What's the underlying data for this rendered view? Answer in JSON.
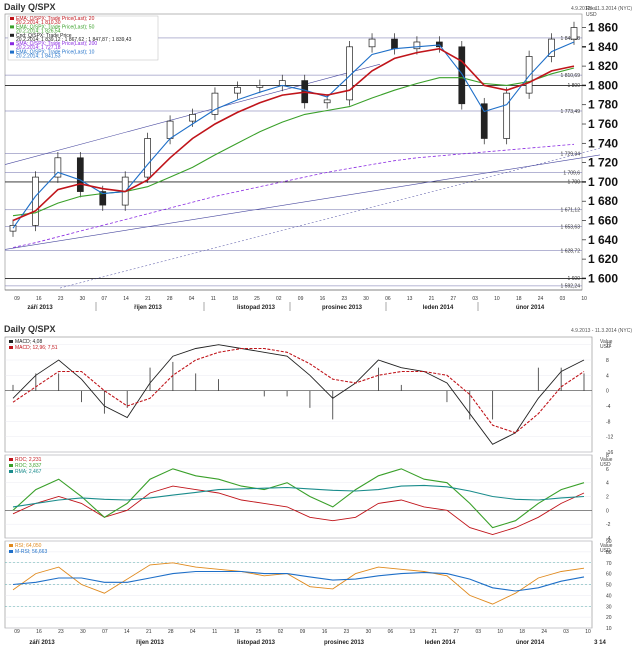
{
  "main_panel": {
    "title": "Daily Q/SPX",
    "date_range": "4.9.2013 - 11.3.2014 (NYC)",
    "axis_caption": [
      "Rtks",
      "USD"
    ],
    "legend": [
      {
        "text": "EMA; Q/SPX; Trade Price(Last); 20",
        "value": "20.2.2014; 1 810,30",
        "color": "#c0141a"
      },
      {
        "text": "EMA; Q/SPX; Trade Price(Last); 50",
        "value": "20.2.2014; 1 826,54",
        "color": "#3aa02a"
      },
      {
        "text": "Cnd; Q/SPX; Trade Price",
        "value": "20.2.2014; 1 839,12 ; 1 867,62 ; 1 847,87 ; 1 839,43",
        "color": "#222222"
      },
      {
        "text": "SMA; Q/SPX; Trade Price(Last); 200",
        "value": "20.2.2014; 1 727,18",
        "color": "#8a2be2"
      },
      {
        "text": "EMA; Q/SPX; Trade Price(Last); 10",
        "value": "20.2.2014; 1 841,53",
        "color": "#1e6fc8"
      }
    ],
    "y_ticks": [
      "1 860",
      "1 840",
      "1 820",
      "1 800",
      "1 780",
      "1 760",
      "1 740",
      "1 720",
      "1 700",
      "1 680",
      "1 660",
      "1 640",
      "1 620",
      "1 600"
    ],
    "bold_ticks": [
      "1 840",
      "1 800",
      "1 700",
      "1 600"
    ],
    "h_level_labels": [
      "1 849,18",
      "1 810,69",
      "1 800",
      "1 773,49",
      "1 729,34",
      "1 709,6",
      "1 700",
      "1 671,12",
      "1 653,63",
      "1 628,72",
      "1 600",
      "1 592,24"
    ],
    "x_dates": [
      "09",
      "16",
      "23",
      "30",
      "07",
      "14",
      "21",
      "28",
      "04",
      "11",
      "18",
      "25",
      "02",
      "09",
      "16",
      "23",
      "30",
      "06",
      "13",
      "21",
      "27",
      "03",
      "10",
      "18",
      "24",
      "03",
      "10"
    ],
    "months": [
      "září 2013",
      "říjen 2013",
      "listopad 2013",
      "prosinec 2013",
      "leden 2014",
      "únor 2014"
    ]
  },
  "sub_panel": {
    "title": "Daily Q/SPX",
    "date_range": "4.9.2013 - 11.3.2014 (NYC)",
    "macd_legend": [
      {
        "text": "MACD; 4,08",
        "color": "#222222"
      },
      {
        "text": "MACD; 12,96; 7,51",
        "color": "#c0141a"
      }
    ],
    "macd_caption": [
      "Value",
      "USD"
    ],
    "macd_ticks": [
      "12",
      "8",
      "4",
      "0",
      "-4",
      "-8",
      "-12",
      "-16"
    ],
    "roc_legend": [
      {
        "text": "ROC; 2,231",
        "color": "#c0141a"
      },
      {
        "text": "ROC; 3,837",
        "color": "#3aa02a"
      },
      {
        "text": "RMA; 2,467",
        "color": "#1a8c8c"
      }
    ],
    "roc_caption": [
      "Value",
      "USD"
    ],
    "roc_ticks": [
      "8",
      "6",
      "4",
      "2",
      "0",
      "-2",
      "-4"
    ],
    "rsi_legend": [
      {
        "text": "RSI; 64,050",
        "color": "#e08a1e"
      },
      {
        "text": "M-RSI; 56,663",
        "color": "#1e6fc8"
      }
    ],
    "rsi_caption": [
      "Value",
      "USD"
    ],
    "rsi_ticks": [
      "90",
      "80",
      "70",
      "60",
      "50",
      "40",
      "30",
      "20",
      "10"
    ],
    "x_dates": [
      "09",
      "16",
      "23",
      "30",
      "07",
      "14",
      "21",
      "28",
      "04",
      "11",
      "18",
      "25",
      "02",
      "09",
      "16",
      "23",
      "30",
      "06",
      "13",
      "21",
      "27",
      "03",
      "10",
      "18",
      "24",
      "03",
      "10"
    ],
    "months": [
      "září 2013",
      "říjen 2013",
      "listopad 2013",
      "prosinec 2013",
      "leden 2014",
      "únor 2014",
      "3 14"
    ]
  },
  "chart_data": [
    {
      "type": "line",
      "title": "Daily Q/SPX",
      "ylabel": "USD",
      "ylim": [
        1588,
        1874
      ],
      "x": [
        "09",
        "16",
        "23",
        "30",
        "07",
        "14",
        "21",
        "28",
        "04",
        "11",
        "18",
        "25",
        "02",
        "09",
        "16",
        "23",
        "30",
        "06",
        "13",
        "21",
        "27",
        "03",
        "10",
        "18",
        "24",
        "03"
      ],
      "series": [
        {
          "name": "Cnd; Q/SPX; Trade Price",
          "values": [
            1655,
            1705,
            1725,
            1690,
            1676,
            1705,
            1745,
            1763,
            1770,
            1792,
            1798,
            1800,
            1805,
            1782,
            1785,
            1840,
            1848,
            1838,
            1845,
            1840,
            1781,
            1745,
            1792,
            1830,
            1848,
            1860
          ]
        },
        {
          "name": "EMA; Q/SPX; Trade Price(Last); 10",
          "values": [
            1652,
            1685,
            1710,
            1702,
            1688,
            1690,
            1718,
            1745,
            1760,
            1775,
            1785,
            1793,
            1800,
            1795,
            1788,
            1810,
            1832,
            1838,
            1840,
            1842,
            1812,
            1773,
            1780,
            1810,
            1835,
            1845
          ]
        },
        {
          "name": "EMA; Q/SPX; Trade Price(Last); 20",
          "values": [
            1660,
            1670,
            1692,
            1698,
            1693,
            1690,
            1702,
            1725,
            1745,
            1760,
            1772,
            1782,
            1790,
            1793,
            1790,
            1795,
            1815,
            1828,
            1834,
            1838,
            1825,
            1800,
            1795,
            1803,
            1815,
            1820
          ]
        },
        {
          "name": "EMA; Q/SPX; Trade Price(Last); 50",
          "values": [
            1665,
            1668,
            1678,
            1685,
            1688,
            1690,
            1695,
            1705,
            1715,
            1728,
            1740,
            1752,
            1762,
            1770,
            1774,
            1778,
            1787,
            1795,
            1802,
            1808,
            1808,
            1802,
            1800,
            1804,
            1812,
            1818
          ]
        },
        {
          "name": "SMA; Q/SPX; Trade Price(Last); 200",
          "values": [
            1632,
            1637,
            1643,
            1649,
            1655,
            1661,
            1667,
            1673,
            1679,
            1685,
            1690,
            1695,
            1700,
            1705,
            1710,
            1714,
            1718,
            1722,
            1725,
            1727,
            1729,
            1731,
            1733,
            1735,
            1737,
            1739
          ]
        }
      ],
      "h_levels": [
        1849.18,
        1810.69,
        1800,
        1773.49,
        1729.34,
        1709.6,
        1700,
        1671.12,
        1653.63,
        1628.72,
        1600,
        1592.24
      ]
    },
    {
      "type": "line",
      "title": "MACD",
      "ylim": [
        -16,
        14
      ],
      "x": [
        "09",
        "16",
        "23",
        "30",
        "07",
        "14",
        "21",
        "28",
        "04",
        "11",
        "18",
        "25",
        "02",
        "09",
        "16",
        "23",
        "30",
        "06",
        "13",
        "21",
        "27",
        "03",
        "10",
        "18",
        "24",
        "03"
      ],
      "series": [
        {
          "name": "MACD; 4,08",
          "values": [
            -2,
            4,
            8,
            3,
            -4,
            -7,
            2,
            9,
            11,
            12,
            11,
            10,
            9,
            4,
            -2,
            2,
            8,
            6,
            5,
            2,
            -6,
            -14,
            -11,
            -2,
            5,
            8
          ]
        },
        {
          "name": "MACD; 12,96; 7,51",
          "values": [
            -3,
            1,
            5,
            5,
            0,
            -4,
            -2,
            4,
            8,
            10,
            11,
            11,
            10,
            7,
            3,
            2,
            4,
            5,
            5,
            4,
            -1,
            -9,
            -11,
            -6,
            1,
            5
          ]
        }
      ]
    },
    {
      "type": "line",
      "title": "ROC",
      "ylim": [
        -4,
        8
      ],
      "x": [
        "09",
        "16",
        "23",
        "30",
        "07",
        "14",
        "21",
        "28",
        "04",
        "11",
        "18",
        "25",
        "02",
        "09",
        "16",
        "23",
        "30",
        "06",
        "13",
        "21",
        "27",
        "03",
        "10",
        "18",
        "24",
        "03"
      ],
      "series": [
        {
          "name": "ROC; 2,231",
          "values": [
            -0.5,
            1,
            2,
            1,
            -1,
            0,
            2.5,
            3.5,
            3,
            2.5,
            1.5,
            1,
            0.5,
            -1,
            -1.5,
            -1,
            1,
            1.5,
            0.5,
            0,
            -2.5,
            -3.5,
            -2.5,
            -1,
            1,
            2.5
          ]
        },
        {
          "name": "ROC; 3,837",
          "values": [
            0,
            3,
            4.5,
            2,
            -1,
            1,
            4.5,
            6,
            5,
            4.5,
            3.5,
            3,
            4,
            2,
            0.5,
            3,
            5,
            6,
            4.5,
            4,
            1,
            -2.5,
            -1.5,
            1,
            3,
            4
          ]
        },
        {
          "name": "RMA; 2,467",
          "values": [
            0.5,
            1,
            1.5,
            1.8,
            1.6,
            1.5,
            1.8,
            2.2,
            2.6,
            3,
            3.1,
            3.2,
            3.3,
            3.1,
            2.9,
            2.8,
            3,
            3.5,
            3.6,
            3.4,
            2.8,
            2,
            1.6,
            1.5,
            1.8,
            2
          ]
        }
      ]
    },
    {
      "type": "line",
      "title": "RSI",
      "ylim": [
        10,
        90
      ],
      "x": [
        "09",
        "16",
        "23",
        "30",
        "07",
        "14",
        "21",
        "28",
        "04",
        "11",
        "18",
        "25",
        "02",
        "09",
        "16",
        "23",
        "30",
        "06",
        "13",
        "21",
        "27",
        "03",
        "10",
        "18",
        "24",
        "03"
      ],
      "series": [
        {
          "name": "RSI; 64,050",
          "values": [
            45,
            60,
            66,
            50,
            42,
            55,
            68,
            70,
            66,
            64,
            62,
            58,
            60,
            48,
            46,
            60,
            66,
            64,
            62,
            58,
            40,
            32,
            42,
            56,
            62,
            65
          ]
        },
        {
          "name": "M-RSI; 56,663",
          "values": [
            50,
            52,
            56,
            56,
            52,
            52,
            56,
            60,
            62,
            62,
            62,
            60,
            60,
            57,
            54,
            55,
            58,
            60,
            61,
            60,
            55,
            47,
            44,
            47,
            53,
            57
          ]
        }
      ]
    }
  ]
}
